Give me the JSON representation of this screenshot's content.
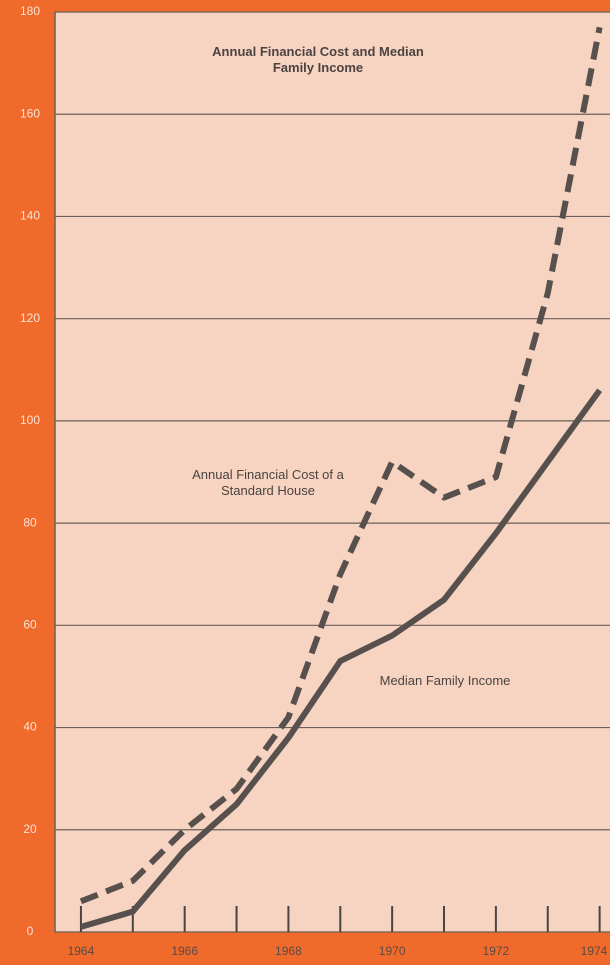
{
  "chart_data": {
    "type": "line",
    "title": "Annual Financial Cost and Median Family Income",
    "x": [
      1964,
      1965,
      1966,
      1967,
      1968,
      1969,
      1970,
      1971,
      1972,
      1973,
      1974
    ],
    "series": [
      {
        "name": "Annual Financial Cost of a Standard House",
        "color": "#57504d",
        "dashed": true,
        "values": [
          6,
          10,
          20,
          28,
          42,
          70,
          92,
          85,
          89,
          125,
          177
        ]
      },
      {
        "name": "Median Family Income",
        "color": "#57504d",
        "dashed": false,
        "values": [
          1,
          4,
          16,
          25,
          38,
          53,
          58,
          65,
          78,
          92,
          106
        ]
      }
    ],
    "xlim": [
      1963.5,
      1974.2
    ],
    "xticks": [
      1964,
      1966,
      1968,
      1970,
      1972,
      1974
    ],
    "minor_xticks": [
      1965,
      1967,
      1969,
      1971,
      1973
    ],
    "ylim": [
      0,
      180
    ],
    "yticks": [
      0,
      20,
      40,
      60,
      80,
      100,
      120,
      140,
      160,
      180
    ],
    "grid": true
  }
}
